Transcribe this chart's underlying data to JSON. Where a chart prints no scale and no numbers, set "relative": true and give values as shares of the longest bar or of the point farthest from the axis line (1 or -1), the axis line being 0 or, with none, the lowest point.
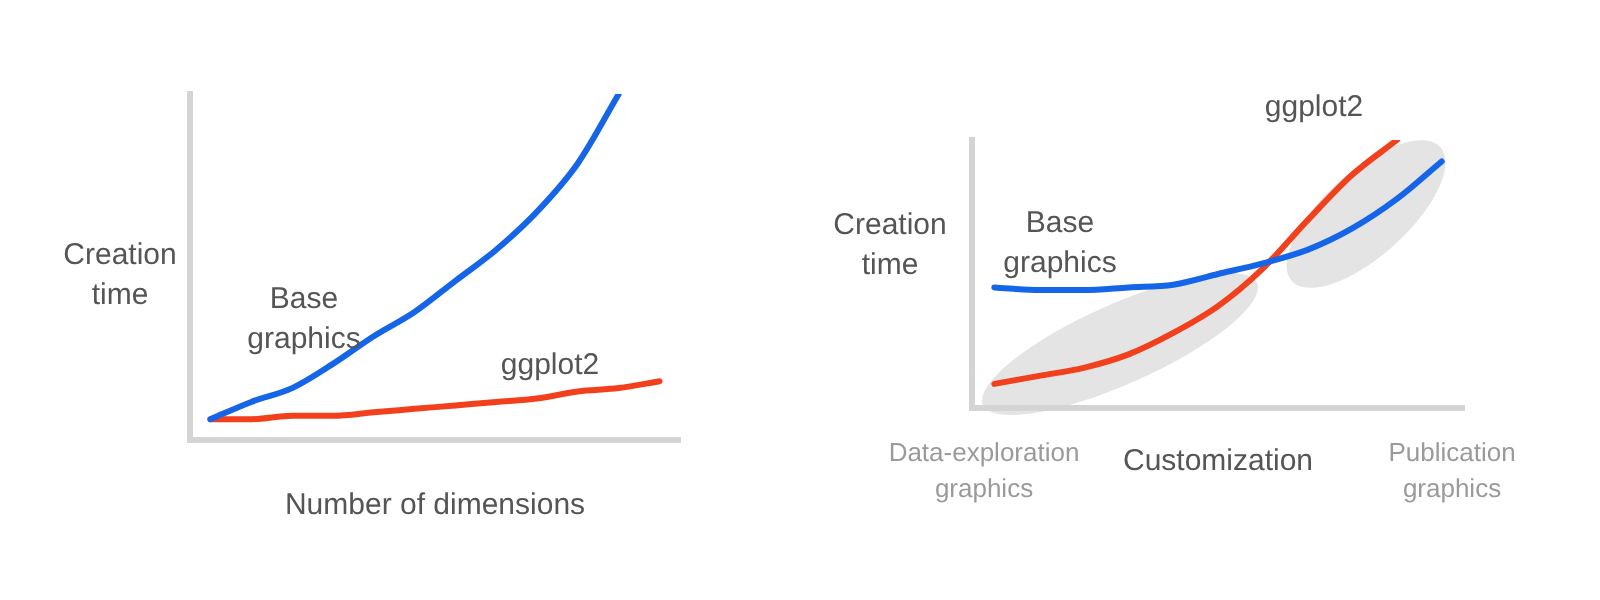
{
  "chart_data": [
    {
      "type": "line",
      "relative": true,
      "xlabel": "Number of dimensions",
      "ylabel": "Creation time",
      "marker": "none",
      "line_style": "solid",
      "categories": [
        null,
        null,
        null,
        null,
        null,
        null,
        null,
        null,
        null,
        null,
        null,
        null
      ],
      "series": [
        {
          "name": "Base graphics",
          "color": "#1565e8",
          "values": [
            0.06,
            0.11,
            0.15,
            0.22,
            0.3,
            0.37,
            0.46,
            0.55,
            0.66,
            0.8,
            1.0,
            null
          ]
        },
        {
          "name": "ggplot2",
          "color": "#f2401c",
          "values": [
            0.06,
            0.06,
            0.07,
            0.07,
            0.08,
            0.09,
            0.1,
            0.11,
            0.12,
            0.14,
            0.15,
            0.17
          ]
        }
      ]
    },
    {
      "type": "line",
      "relative": true,
      "xlabel": "Customization",
      "ylabel": "Creation time",
      "marker": "none",
      "line_style": "solid",
      "annotations": [
        "Data-exploration graphics",
        "Publication graphics"
      ],
      "categories": [
        null,
        null,
        null,
        null,
        null,
        null,
        null,
        null,
        null,
        null,
        null
      ],
      "series": [
        {
          "name": "Base graphics",
          "color": "#1565e8",
          "values": [
            0.45,
            0.44,
            0.44,
            0.45,
            0.46,
            0.5,
            0.54,
            0.59,
            0.67,
            0.78,
            0.92
          ]
        },
        {
          "name": "ggplot2",
          "color": "#f2401c",
          "values": [
            0.09,
            0.12,
            0.15,
            0.2,
            0.28,
            0.38,
            0.52,
            0.7,
            0.87,
            1.0,
            null
          ]
        }
      ]
    }
  ]
}
